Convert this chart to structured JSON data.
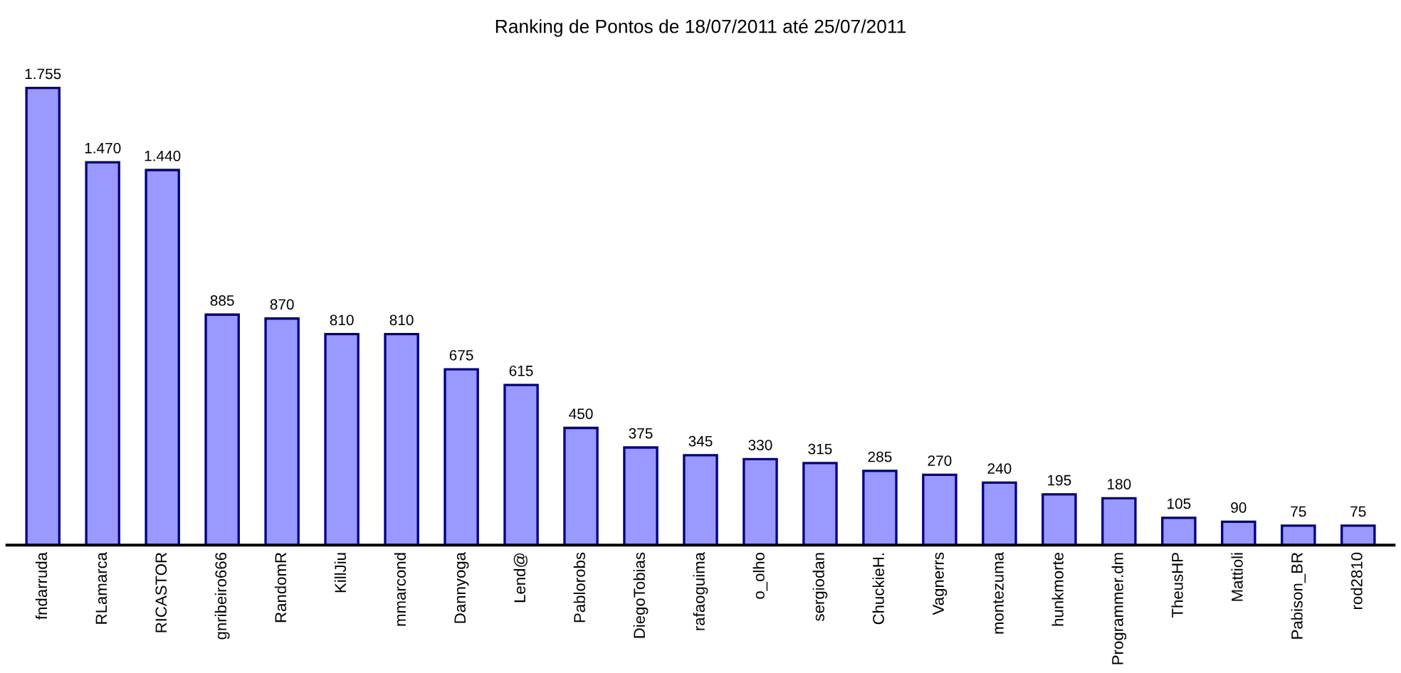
{
  "chart_data": {
    "type": "bar",
    "title": "Ranking de Pontos de 18/07/2011 até 25/07/2011",
    "categories": [
      "fndarruda",
      "RLamarca",
      "RICASTOR",
      "gnribeiro666",
      "RandomR",
      "KillJiu",
      "mmarcond",
      "Dannyoga",
      "Lend@",
      "Pablorobs",
      "DiegoTobias",
      "rafaoguima",
      "o_olho",
      "sergiodan",
      "ChuckieH.",
      "Vagnerrs",
      "montezuma",
      "hunkmorte",
      "Programmer.dm",
      "TheusHP",
      "Mattioli",
      "Pabison_BR",
      "rod2810"
    ],
    "values": [
      1755,
      1470,
      1440,
      885,
      870,
      810,
      810,
      675,
      615,
      450,
      375,
      345,
      330,
      315,
      285,
      270,
      240,
      195,
      180,
      105,
      90,
      75,
      75
    ],
    "value_labels": [
      "1.755",
      "1.470",
      "1.440",
      "885",
      "870",
      "810",
      "810",
      "675",
      "615",
      "450",
      "375",
      "345",
      "330",
      "315",
      "285",
      "270",
      "240",
      "195",
      "180",
      "105",
      "90",
      "75",
      "75"
    ],
    "color": "#9999ff",
    "grid": false,
    "legend": false
  }
}
